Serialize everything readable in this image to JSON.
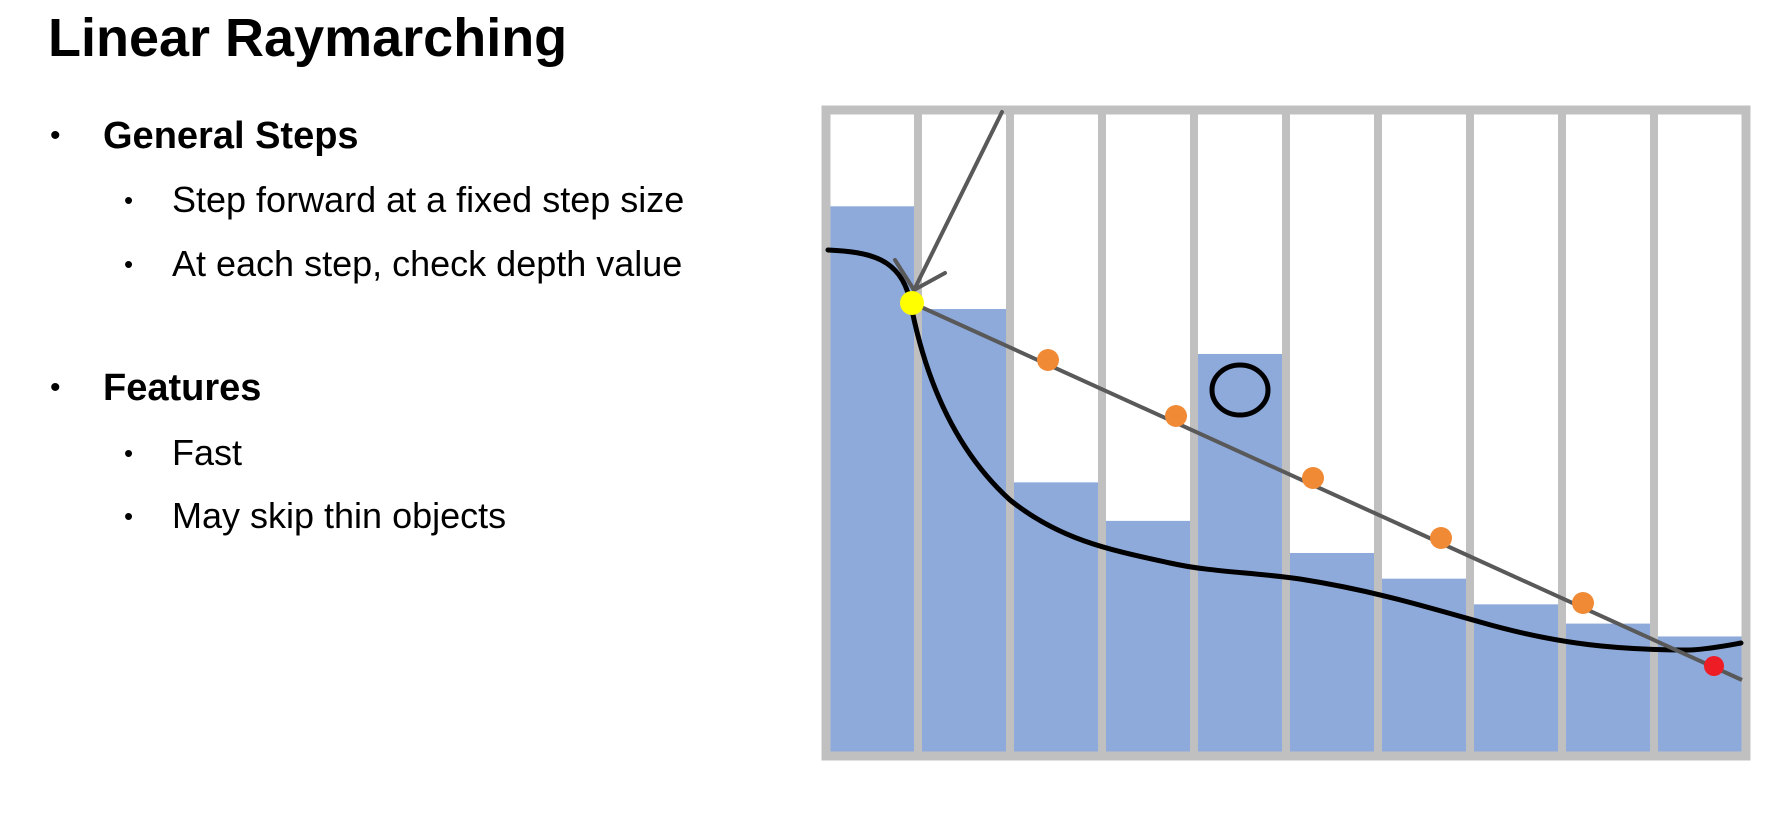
{
  "slide": {
    "title": "Linear Raymarching",
    "sections": [
      {
        "heading": "General Steps",
        "items": [
          "Step forward at a fixed step size",
          "At each step, check depth value"
        ]
      },
      {
        "heading": "Features",
        "items": [
          "Fast",
          "May skip thin objects"
        ]
      }
    ]
  },
  "diagram": {
    "columns": 10,
    "depth_fill_fraction_from_bottom": [
      0.85,
      0.69,
      0.42,
      0.36,
      0.62,
      0.31,
      0.27,
      0.23,
      0.2,
      0.18
    ],
    "step_markers": 5,
    "colors": {
      "grid": "#c0c0c0",
      "depth_fill": "#8eaadb",
      "ray": "#595959",
      "surface_curve": "#000000",
      "start_point": "#ffff00",
      "step_point": "#f08a35",
      "hit_point": "#ee1c25",
      "missed_object_marker": "#000000"
    }
  }
}
